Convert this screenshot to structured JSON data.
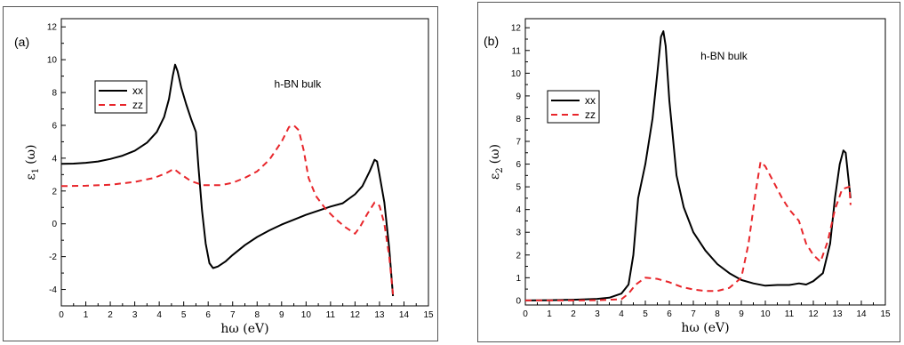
{
  "chart_data": [
    {
      "type": "line",
      "panel_label": "(a)",
      "annotation": "h-BN bulk",
      "xlabel": "hω (eV)",
      "ylabel_main": "ε",
      "ylabel_sub": "1",
      "ylabel_tail": "(ω)",
      "xlim": [
        0,
        15
      ],
      "ylim": [
        -5,
        12.5
      ],
      "xticks": [
        0,
        1,
        2,
        3,
        4,
        5,
        6,
        7,
        8,
        9,
        10,
        11,
        12,
        13,
        14,
        15
      ],
      "yticks": [
        -4,
        -2,
        0,
        2,
        4,
        6,
        8,
        10,
        12
      ],
      "grid": false,
      "legend_position": "upper-left",
      "series": [
        {
          "name": "xx",
          "color": "#000000",
          "dash": "solid",
          "points": [
            [
              0,
              3.65
            ],
            [
              0.5,
              3.67
            ],
            [
              1,
              3.72
            ],
            [
              1.5,
              3.8
            ],
            [
              2,
              3.95
            ],
            [
              2.5,
              4.15
            ],
            [
              3,
              4.45
            ],
            [
              3.5,
              4.95
            ],
            [
              3.9,
              5.6
            ],
            [
              4.2,
              6.5
            ],
            [
              4.4,
              7.6
            ],
            [
              4.55,
              9.0
            ],
            [
              4.65,
              9.7
            ],
            [
              4.75,
              9.3
            ],
            [
              4.9,
              8.3
            ],
            [
              5.1,
              7.3
            ],
            [
              5.3,
              6.4
            ],
            [
              5.5,
              5.6
            ],
            [
              5.6,
              3.5
            ],
            [
              5.75,
              0.8
            ],
            [
              5.9,
              -1.2
            ],
            [
              6.05,
              -2.4
            ],
            [
              6.2,
              -2.7
            ],
            [
              6.4,
              -2.6
            ],
            [
              6.7,
              -2.3
            ],
            [
              7,
              -1.9
            ],
            [
              7.5,
              -1.3
            ],
            [
              8,
              -0.8
            ],
            [
              8.5,
              -0.4
            ],
            [
              9,
              -0.05
            ],
            [
              9.5,
              0.25
            ],
            [
              10,
              0.55
            ],
            [
              10.5,
              0.8
            ],
            [
              11,
              1.05
            ],
            [
              11.5,
              1.25
            ],
            [
              12,
              1.8
            ],
            [
              12.3,
              2.3
            ],
            [
              12.6,
              3.2
            ],
            [
              12.8,
              3.9
            ],
            [
              12.9,
              3.8
            ],
            [
              13.0,
              3.0
            ],
            [
              13.2,
              1.3
            ],
            [
              13.4,
              -1.5
            ],
            [
              13.55,
              -4.4
            ]
          ]
        },
        {
          "name": "zz",
          "color": "#e8262b",
          "dash": "dashed",
          "points": [
            [
              0,
              2.3
            ],
            [
              1,
              2.32
            ],
            [
              2,
              2.38
            ],
            [
              3,
              2.55
            ],
            [
              3.8,
              2.8
            ],
            [
              4.3,
              3.1
            ],
            [
              4.6,
              3.35
            ],
            [
              4.9,
              3.0
            ],
            [
              5.3,
              2.6
            ],
            [
              5.8,
              2.35
            ],
            [
              6.5,
              2.35
            ],
            [
              7,
              2.5
            ],
            [
              7.5,
              2.8
            ],
            [
              8,
              3.2
            ],
            [
              8.5,
              3.9
            ],
            [
              9,
              5.0
            ],
            [
              9.3,
              5.9
            ],
            [
              9.5,
              6.0
            ],
            [
              9.7,
              5.7
            ],
            [
              9.9,
              4.5
            ],
            [
              10.1,
              2.8
            ],
            [
              10.4,
              1.7
            ],
            [
              10.8,
              0.9
            ],
            [
              11.2,
              0.3
            ],
            [
              11.6,
              -0.2
            ],
            [
              12,
              -0.6
            ],
            [
              12.2,
              -0.2
            ],
            [
              12.5,
              0.6
            ],
            [
              12.8,
              1.3
            ],
            [
              13.0,
              1.1
            ],
            [
              13.2,
              0.0
            ],
            [
              13.4,
              -2.0
            ],
            [
              13.55,
              -4.3
            ]
          ]
        }
      ]
    },
    {
      "type": "line",
      "panel_label": "(b)",
      "annotation": "h-BN bulk",
      "xlabel": "hω (eV)",
      "ylabel_main": "ε",
      "ylabel_sub": "2",
      "ylabel_tail": "(ω)",
      "xlim": [
        0,
        15
      ],
      "ylim": [
        -0.2,
        12.4
      ],
      "xticks": [
        0,
        1,
        2,
        3,
        4,
        5,
        6,
        7,
        8,
        9,
        10,
        11,
        12,
        13,
        14,
        15
      ],
      "yticks": [
        0,
        1,
        2,
        3,
        4,
        5,
        6,
        7,
        8,
        9,
        10,
        11,
        12
      ],
      "grid": false,
      "legend_position": "upper-left",
      "series": [
        {
          "name": "xx",
          "color": "#000000",
          "dash": "solid",
          "points": [
            [
              0,
              0.0
            ],
            [
              1,
              0.01
            ],
            [
              2,
              0.03
            ],
            [
              3,
              0.07
            ],
            [
              3.5,
              0.12
            ],
            [
              4,
              0.3
            ],
            [
              4.3,
              0.7
            ],
            [
              4.5,
              2.0
            ],
            [
              4.7,
              4.5
            ],
            [
              5.0,
              6.0
            ],
            [
              5.3,
              8.0
            ],
            [
              5.5,
              10.0
            ],
            [
              5.65,
              11.6
            ],
            [
              5.75,
              11.85
            ],
            [
              5.85,
              11.2
            ],
            [
              6.0,
              8.8
            ],
            [
              6.3,
              5.5
            ],
            [
              6.6,
              4.1
            ],
            [
              7,
              3.0
            ],
            [
              7.5,
              2.2
            ],
            [
              8,
              1.6
            ],
            [
              8.5,
              1.2
            ],
            [
              9,
              0.9
            ],
            [
              9.5,
              0.75
            ],
            [
              10,
              0.65
            ],
            [
              10.5,
              0.68
            ],
            [
              11,
              0.68
            ],
            [
              11.4,
              0.75
            ],
            [
              11.7,
              0.7
            ],
            [
              12,
              0.85
            ],
            [
              12.4,
              1.2
            ],
            [
              12.7,
              2.5
            ],
            [
              12.9,
              4.5
            ],
            [
              13.1,
              6.0
            ],
            [
              13.25,
              6.6
            ],
            [
              13.35,
              6.5
            ],
            [
              13.45,
              5.5
            ],
            [
              13.55,
              4.5
            ]
          ]
        },
        {
          "name": "zz",
          "color": "#e8262b",
          "dash": "dashed",
          "points": [
            [
              0,
              0.0
            ],
            [
              1,
              0.0
            ],
            [
              2,
              0.0
            ],
            [
              3,
              0.01
            ],
            [
              4,
              0.05
            ],
            [
              4.3,
              0.3
            ],
            [
              4.6,
              0.7
            ],
            [
              5,
              1.0
            ],
            [
              5.5,
              0.95
            ],
            [
              6,
              0.8
            ],
            [
              6.5,
              0.6
            ],
            [
              7,
              0.48
            ],
            [
              7.5,
              0.42
            ],
            [
              8,
              0.42
            ],
            [
              8.5,
              0.55
            ],
            [
              9,
              1.0
            ],
            [
              9.3,
              2.5
            ],
            [
              9.6,
              4.8
            ],
            [
              9.8,
              6.1
            ],
            [
              10,
              5.9
            ],
            [
              10.3,
              5.3
            ],
            [
              10.7,
              4.5
            ],
            [
              11,
              4.0
            ],
            [
              11.4,
              3.5
            ],
            [
              11.7,
              2.5
            ],
            [
              12,
              2.0
            ],
            [
              12.3,
              1.7
            ],
            [
              12.6,
              2.6
            ],
            [
              12.9,
              4.0
            ],
            [
              13.2,
              4.9
            ],
            [
              13.5,
              5.0
            ],
            [
              13.55,
              4.2
            ]
          ]
        }
      ]
    }
  ]
}
